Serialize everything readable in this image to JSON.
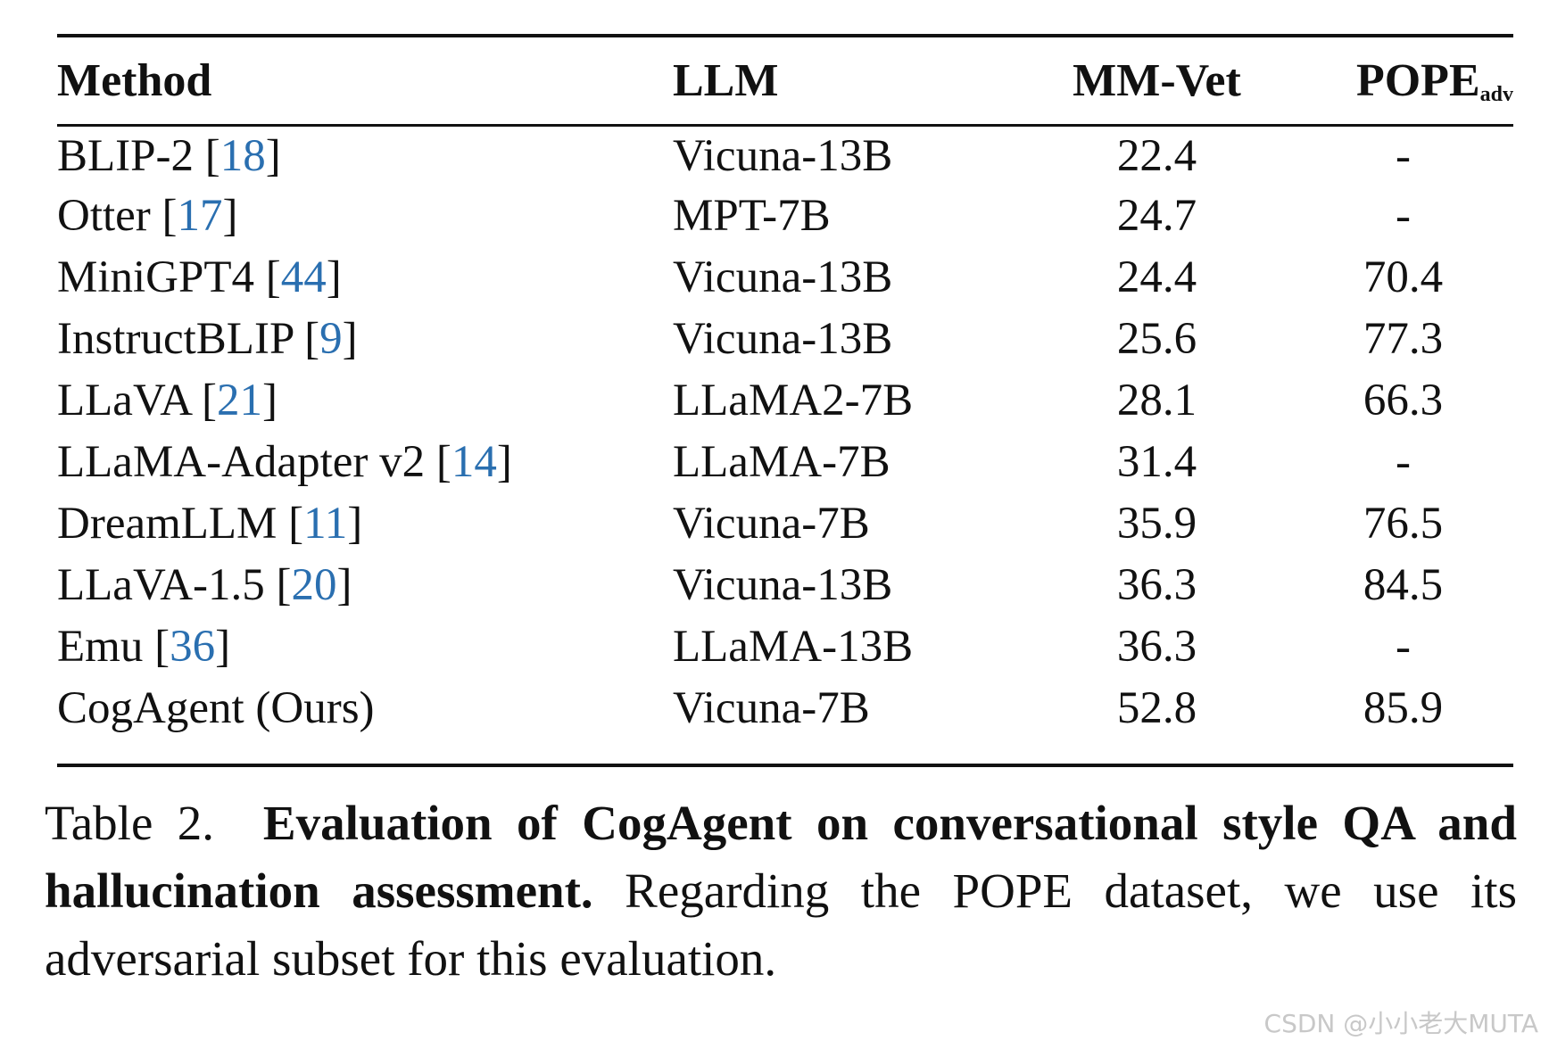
{
  "table": {
    "headers": {
      "method": "Method",
      "llm": "LLM",
      "mmvet": "MM-Vet",
      "pope": "POPE",
      "pope_sub": "adv"
    },
    "rows": [
      {
        "method": "BLIP-2",
        "ref": "18",
        "llm": "Vicuna-13B",
        "mmvet": "22.4",
        "pope": "-"
      },
      {
        "method": "Otter",
        "ref": "17",
        "llm": "MPT-7B",
        "mmvet": "24.7",
        "pope": "-"
      },
      {
        "method": "MiniGPT4",
        "ref": "44",
        "llm": "Vicuna-13B",
        "mmvet": "24.4",
        "pope": "70.4"
      },
      {
        "method": "InstructBLIP",
        "ref": "9",
        "llm": "Vicuna-13B",
        "mmvet": "25.6",
        "pope": "77.3"
      },
      {
        "method": "LLaVA",
        "ref": "21",
        "llm": "LLaMA2-7B",
        "mmvet": "28.1",
        "pope": "66.3"
      },
      {
        "method": "LLaMA-Adapter v2",
        "ref": "14",
        "llm": "LLaMA-7B",
        "mmvet": "31.4",
        "pope": "-"
      },
      {
        "method": "DreamLLM",
        "ref": "11",
        "llm": "Vicuna-7B",
        "mmvet": "35.9",
        "pope": "76.5"
      },
      {
        "method": "LLaVA-1.5",
        "ref": "20",
        "llm": "Vicuna-13B",
        "mmvet": "36.3",
        "pope": "84.5"
      },
      {
        "method": "Emu",
        "ref": "36",
        "llm": "LLaMA-13B",
        "mmvet": "36.3",
        "pope": "-"
      },
      {
        "method": "CogAgent (Ours)",
        "ref": "",
        "llm": "Vicuna-7B",
        "mmvet": "52.8",
        "pope": "85.9"
      }
    ]
  },
  "caption": {
    "label": "Table 2.",
    "bold_text": "Evaluation of CogAgent on conversational style QA and hallucination assessment.",
    "text": "Regarding the POPE dataset, we use its adversarial subset for this evaluation."
  },
  "watermark": "CSDN @小小老大MUTA",
  "colors": {
    "reference_link": "#2a6fb0",
    "text": "#111111",
    "watermark": "#c8c8c8"
  }
}
